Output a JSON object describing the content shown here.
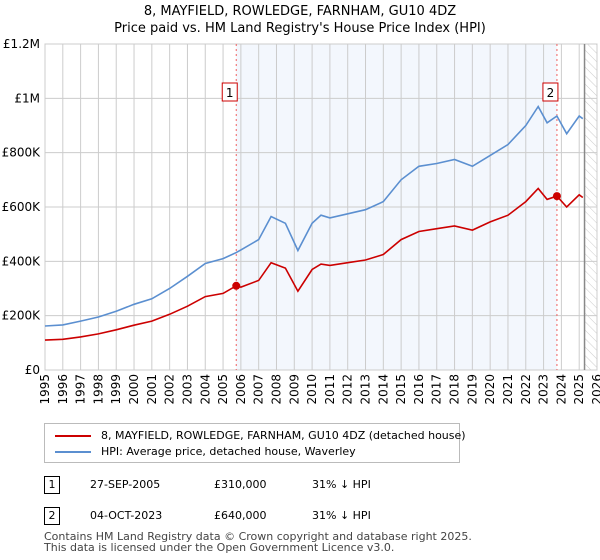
{
  "chart_data": {
    "type": "line",
    "title": "8, MAYFIELD, ROWLEDGE, FARNHAM, GU10 4DZ",
    "subtitle": "Price paid vs. HM Land Registry's House Price Index (HPI)",
    "xlim": [
      1995,
      2026
    ],
    "ylim": [
      0,
      1200000
    ],
    "y_ticks": [
      {
        "v": 0,
        "label": "£0"
      },
      {
        "v": 200000,
        "label": "£200K"
      },
      {
        "v": 400000,
        "label": "£400K"
      },
      {
        "v": 600000,
        "label": "£600K"
      },
      {
        "v": 800000,
        "label": "£800K"
      },
      {
        "v": 1000000,
        "label": "£1M"
      },
      {
        "v": 1200000,
        "label": "£1.2M"
      }
    ],
    "x_ticks": [
      "1995",
      "1996",
      "1997",
      "1998",
      "1999",
      "2000",
      "2001",
      "2002",
      "2003",
      "2004",
      "2005",
      "2006",
      "2007",
      "2008",
      "2009",
      "2010",
      "2011",
      "2012",
      "2013",
      "2014",
      "2015",
      "2016",
      "2017",
      "2018",
      "2019",
      "2020",
      "2021",
      "2022",
      "2023",
      "2024",
      "2025",
      "2026"
    ],
    "grid": true,
    "series": [
      {
        "name": "8, MAYFIELD, ROWLEDGE, FARNHAM, GU10 4DZ (detached house)",
        "color": "#cc0000",
        "x": [
          1995,
          1996,
          1997,
          1998,
          1999,
          2000,
          2001,
          2002,
          2003,
          2004,
          2005,
          2005.74,
          2006,
          2007,
          2007.7,
          2008.5,
          2009.2,
          2010,
          2010.5,
          2011,
          2012,
          2013,
          2014,
          2015,
          2016,
          2017,
          2018,
          2019,
          2020,
          2021,
          2022,
          2022.7,
          2023.2,
          2023.75,
          2024.3,
          2025,
          2025.2
        ],
        "y": [
          110000,
          113000,
          122000,
          133000,
          148000,
          165000,
          180000,
          205000,
          235000,
          270000,
          282000,
          310000,
          305000,
          330000,
          395000,
          375000,
          290000,
          370000,
          390000,
          385000,
          395000,
          405000,
          425000,
          480000,
          510000,
          520000,
          530000,
          515000,
          545000,
          570000,
          620000,
          668000,
          628000,
          640000,
          600000,
          645000,
          635000
        ]
      },
      {
        "name": "HPI: Average price, detached house, Waverley",
        "color": "#5b8fd0",
        "x": [
          1995,
          1996,
          1997,
          1998,
          1999,
          2000,
          2001,
          2002,
          2003,
          2004,
          2005,
          2005.74,
          2006,
          2007,
          2007.7,
          2008.5,
          2009.2,
          2010,
          2010.5,
          2011,
          2012,
          2013,
          2014,
          2015,
          2016,
          2017,
          2018,
          2019,
          2020,
          2021,
          2022,
          2022.7,
          2023.2,
          2023.75,
          2024.3,
          2025,
          2025.2
        ],
        "y": [
          162000,
          166000,
          180000,
          195000,
          216000,
          242000,
          262000,
          300000,
          345000,
          392000,
          410000,
          432000,
          442000,
          480000,
          565000,
          540000,
          440000,
          540000,
          570000,
          560000,
          575000,
          590000,
          620000,
          700000,
          750000,
          760000,
          775000,
          750000,
          790000,
          830000,
          900000,
          970000,
          910000,
          935000,
          870000,
          935000,
          925000
        ]
      }
    ],
    "sales": [
      {
        "id": "1",
        "date": "27-SEP-2005",
        "price": "£310,000",
        "hpi": "31% ↓ HPI",
        "x": 2005.74,
        "y": 310000
      },
      {
        "id": "2",
        "date": "04-OCT-2023",
        "price": "£640,000",
        "hpi": "31% ↓ HPI",
        "x": 2023.75,
        "y": 640000
      }
    ]
  },
  "footer": {
    "line1": "Contains HM Land Registry data © Crown copyright and database right 2025.",
    "line2": "This data is licensed under the Open Government Licence v3.0."
  }
}
